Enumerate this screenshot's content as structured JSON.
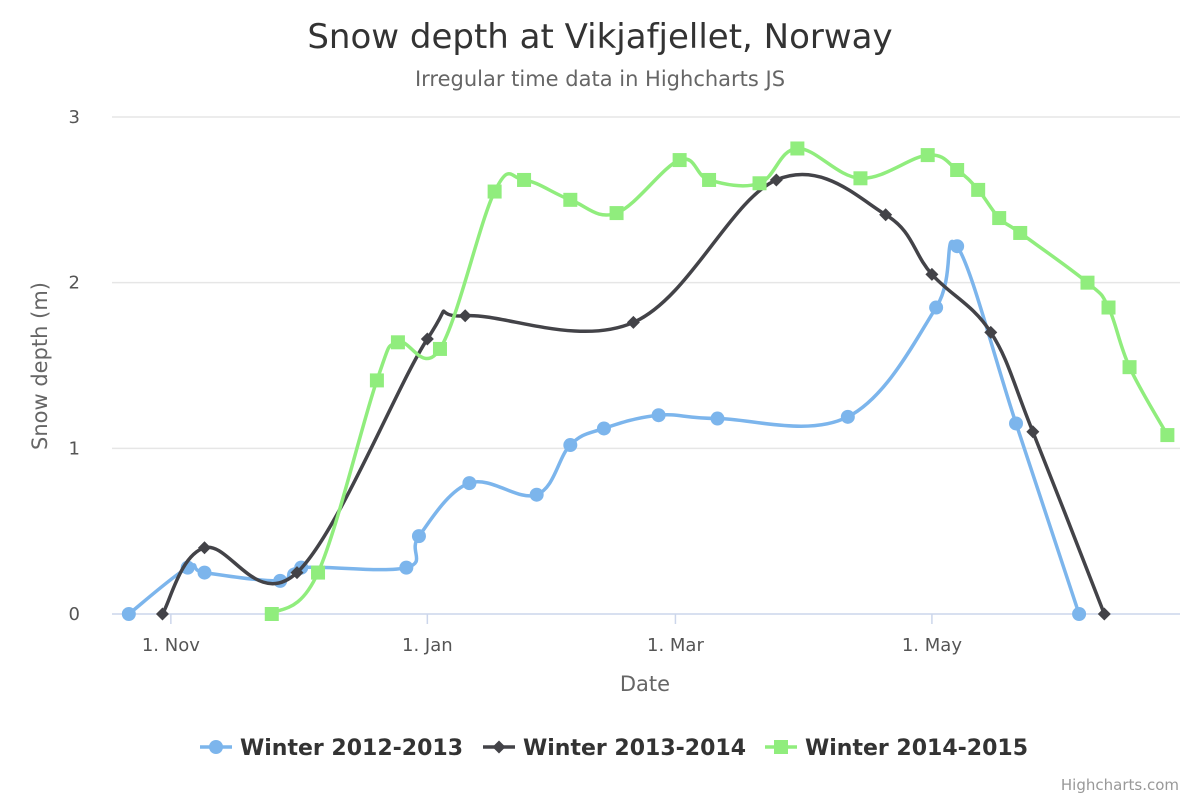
{
  "chart_data": {
    "type": "line",
    "title": "Snow depth at Vikjafjellet, Norway",
    "subtitle": "Irregular time data in Highcharts JS",
    "xlabel": "Date",
    "ylabel": "Snow depth (m)",
    "x_ticks": [
      {
        "label": "1. Nov",
        "value": 0
      },
      {
        "label": "1. Jan",
        "value": 61
      },
      {
        "label": "1. Mar",
        "value": 120
      },
      {
        "label": "1. May",
        "value": 181
      }
    ],
    "y_ticks": [
      0,
      1,
      2,
      3
    ],
    "xlim": [
      -14,
      240
    ],
    "ylim": [
      0,
      3
    ],
    "grid": true,
    "legend_position": "bottom-center",
    "credits": "Highcharts.com",
    "series": [
      {
        "name": "Winter 2012-2013",
        "color": "#7cb5ec",
        "marker": "circle",
        "points": [
          [
            "-10",
            0
          ],
          [
            "4",
            0.28
          ],
          [
            "8",
            0.25
          ],
          [
            "26",
            0.2
          ],
          [
            "31",
            0.28
          ],
          [
            "56",
            0.28
          ],
          [
            "59",
            0.47
          ],
          [
            "71",
            0.79
          ],
          [
            "87",
            0.72
          ],
          [
            "95",
            1.02
          ],
          [
            "103",
            1.12
          ],
          [
            "116",
            1.2
          ],
          [
            "130",
            1.18
          ],
          [
            "161",
            1.19
          ],
          [
            "182",
            1.85
          ],
          [
            "187",
            2.22
          ],
          [
            "201",
            1.15
          ],
          [
            "216",
            0
          ]
        ]
      },
      {
        "name": "Winter 2013-2014",
        "color": "#434348",
        "marker": "diamond",
        "points": [
          [
            "-2",
            0
          ],
          [
            "8",
            0.4
          ],
          [
            "30",
            0.25
          ],
          [
            "61",
            1.66
          ],
          [
            "70",
            1.8
          ],
          [
            "110",
            1.76
          ],
          [
            "144",
            2.62
          ],
          [
            "170",
            2.41
          ],
          [
            "181",
            2.05
          ],
          [
            "195",
            1.7
          ],
          [
            "205",
            1.1
          ],
          [
            "222",
            0
          ]
        ]
      },
      {
        "name": "Winter 2014-2015",
        "color": "#90ed7d",
        "marker": "square",
        "points": [
          [
            "24",
            0
          ],
          [
            "35",
            0.25
          ],
          [
            "49",
            1.41
          ],
          [
            "54",
            1.64
          ],
          [
            "64",
            1.6
          ],
          [
            "77",
            2.55
          ],
          [
            "84",
            2.62
          ],
          [
            "95",
            2.5
          ],
          [
            "106",
            2.42
          ],
          [
            "121",
            2.74
          ],
          [
            "128",
            2.62
          ],
          [
            "140",
            2.6
          ],
          [
            "149",
            2.81
          ],
          [
            "164",
            2.63
          ],
          [
            "180",
            2.77
          ],
          [
            "187",
            2.68
          ],
          [
            "192",
            2.56
          ],
          [
            "197",
            2.39
          ],
          [
            "202",
            2.3
          ],
          [
            "218",
            2.0
          ],
          [
            "223",
            1.85
          ],
          [
            "228",
            1.49
          ],
          [
            "237",
            1.08
          ]
        ]
      }
    ]
  }
}
